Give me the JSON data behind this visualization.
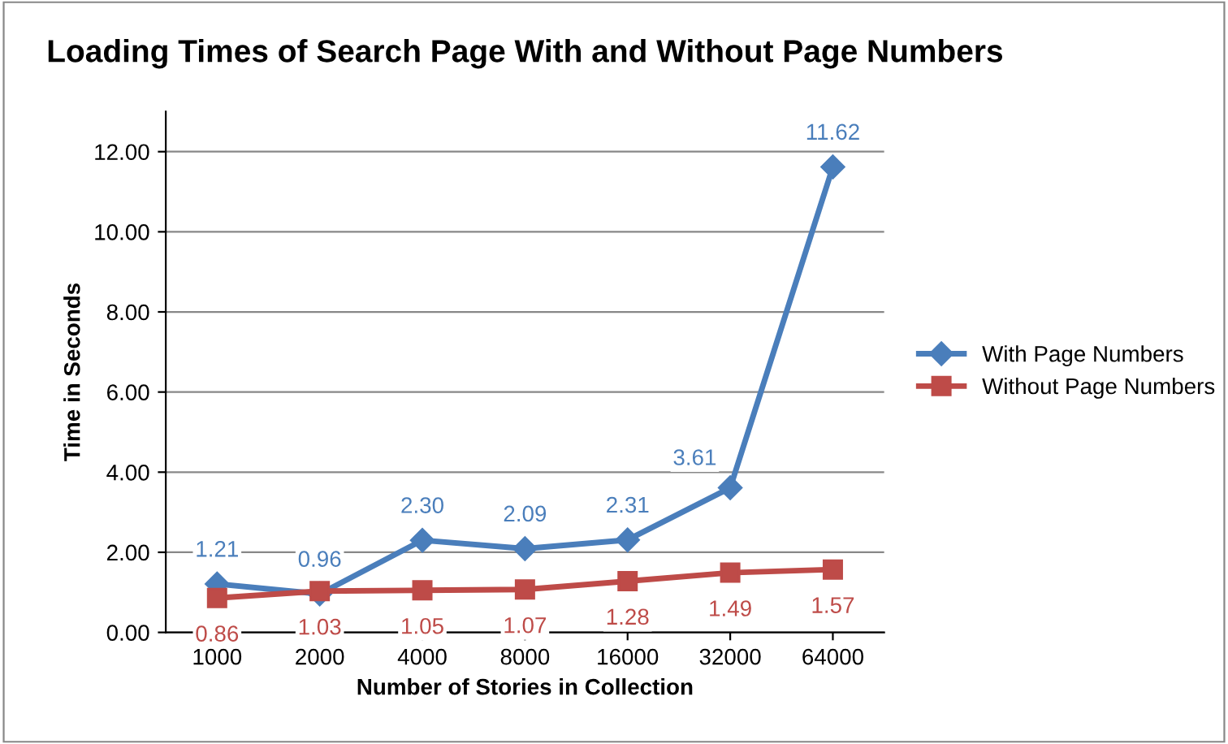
{
  "chart_data": {
    "type": "line",
    "title": "Loading Times of Search Page With and Without Page Numbers",
    "xlabel": "Number of Stories in Collection",
    "ylabel": "Time in Seconds",
    "categories": [
      "1000",
      "2000",
      "4000",
      "8000",
      "16000",
      "32000",
      "64000"
    ],
    "series": [
      {
        "name": "With Page Numbers",
        "color": "#4a7ebb",
        "marker": "diamond",
        "values": [
          1.21,
          0.96,
          2.3,
          2.09,
          2.31,
          3.61,
          11.62
        ],
        "value_labels": [
          "1.21",
          "0.96",
          "2.30",
          "2.09",
          "2.31",
          "3.61",
          "11.62"
        ]
      },
      {
        "name": "Without Page Numbers",
        "color": "#be4b48",
        "marker": "square",
        "values": [
          0.86,
          1.03,
          1.05,
          1.07,
          1.28,
          1.49,
          1.57
        ],
        "value_labels": [
          "0.86",
          "1.03",
          "1.05",
          "1.07",
          "1.28",
          "1.49",
          "1.57"
        ]
      }
    ],
    "ylim": [
      0,
      13
    ],
    "yticks": [
      {
        "value": 0,
        "label": "0.00"
      },
      {
        "value": 2,
        "label": "2.00"
      },
      {
        "value": 4,
        "label": "4.00"
      },
      {
        "value": 6,
        "label": "6.00"
      },
      {
        "value": 8,
        "label": "8.00"
      },
      {
        "value": 10,
        "label": "10.00"
      },
      {
        "value": 12,
        "label": "12.00"
      }
    ],
    "grid": "y",
    "legend": "right",
    "line_style": "solid"
  }
}
